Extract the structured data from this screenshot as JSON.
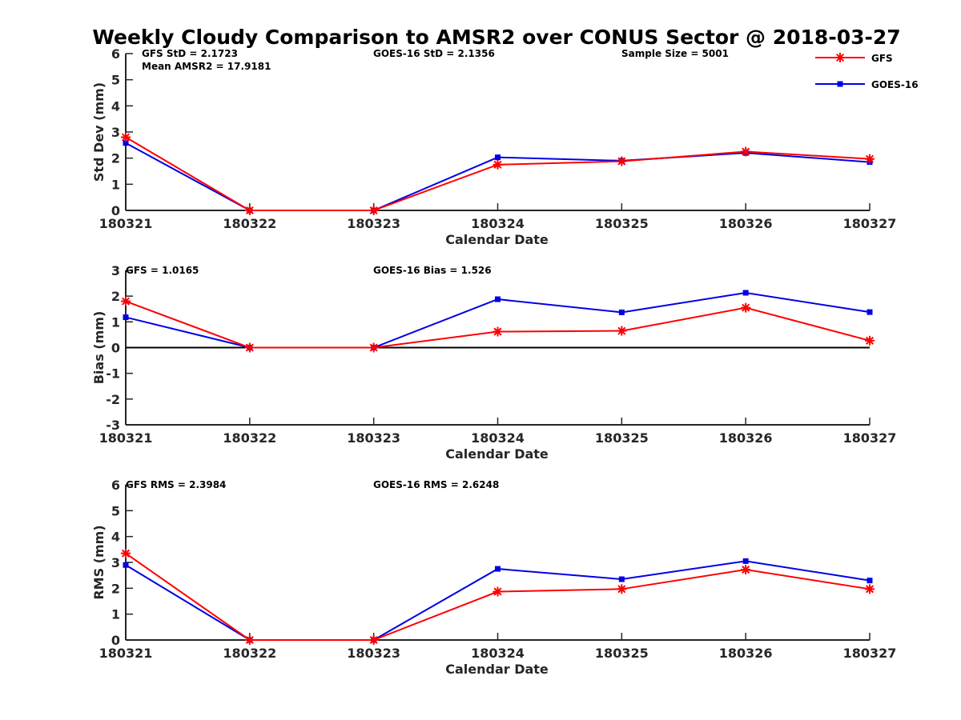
{
  "title": "Weekly Cloudy Comparison to AMSR2 over CONUS Sector @ 2018-03-27",
  "colors": {
    "gfs": "#ff0000",
    "goes": "#0000e6",
    "axis": "#262626",
    "zero_line": "#000000"
  },
  "legend": {
    "placement": "top-right",
    "items": [
      {
        "name": "GFS",
        "marker": "asterisk",
        "color": "#ff0000"
      },
      {
        "name": "GOES-16",
        "marker": "square",
        "color": "#0000e6"
      }
    ]
  },
  "chart_data": [
    {
      "type": "line",
      "ylabel": "Std Dev (mm)",
      "xlabel": "Calendar Date",
      "categories": [
        "180321",
        "180322",
        "180323",
        "180324",
        "180325",
        "180326",
        "180327"
      ],
      "ylim": [
        0,
        6
      ],
      "yticks": [
        "0",
        "1",
        "2",
        "3",
        "4",
        "5",
        "6"
      ],
      "zero_line": false,
      "annotations": {
        "left": "GFS StD = 2.1723",
        "left2": "Mean AMSR2 = 17.9181",
        "middle": "GOES-16 StD = 2.1356",
        "right": "Sample Size = 5001"
      },
      "series": [
        {
          "name": "GFS",
          "values": [
            2.8,
            0.0,
            0.0,
            1.75,
            1.88,
            2.25,
            1.97
          ]
        },
        {
          "name": "GOES-16",
          "values": [
            2.58,
            0.0,
            0.0,
            2.03,
            1.9,
            2.2,
            1.85
          ]
        }
      ]
    },
    {
      "type": "line",
      "ylabel": "Bias (mm)",
      "xlabel": "Calendar Date",
      "categories": [
        "180321",
        "180322",
        "180323",
        "180324",
        "180325",
        "180326",
        "180327"
      ],
      "ylim": [
        -3,
        3
      ],
      "yticks": [
        "-3",
        "-2",
        "-1",
        "0",
        "1",
        "2",
        "3"
      ],
      "zero_line": true,
      "annotations": {
        "left": "GFS = 1.0165",
        "middle": "GOES-16 Bias  = 1.526"
      },
      "series": [
        {
          "name": "GFS",
          "values": [
            1.8,
            0.0,
            0.0,
            0.62,
            0.65,
            1.55,
            0.27
          ]
        },
        {
          "name": "GOES-16",
          "values": [
            1.18,
            0.0,
            0.0,
            1.88,
            1.37,
            2.13,
            1.38
          ]
        }
      ]
    },
    {
      "type": "line",
      "ylabel": "RMS (mm)",
      "xlabel": "Calendar Date",
      "categories": [
        "180321",
        "180322",
        "180323",
        "180324",
        "180325",
        "180326",
        "180327"
      ],
      "ylim": [
        0,
        6
      ],
      "yticks": [
        "0",
        "1",
        "2",
        "3",
        "4",
        "5",
        "6"
      ],
      "zero_line": false,
      "annotations": {
        "left": "GFS RMS = 2.3984",
        "middle": "GOES-16 RMS = 2.6248"
      },
      "series": [
        {
          "name": "GFS",
          "values": [
            3.35,
            0.0,
            0.0,
            1.87,
            1.97,
            2.72,
            1.97
          ]
        },
        {
          "name": "GOES-16",
          "values": [
            2.9,
            0.0,
            0.0,
            2.75,
            2.35,
            3.05,
            2.3
          ]
        }
      ]
    }
  ]
}
